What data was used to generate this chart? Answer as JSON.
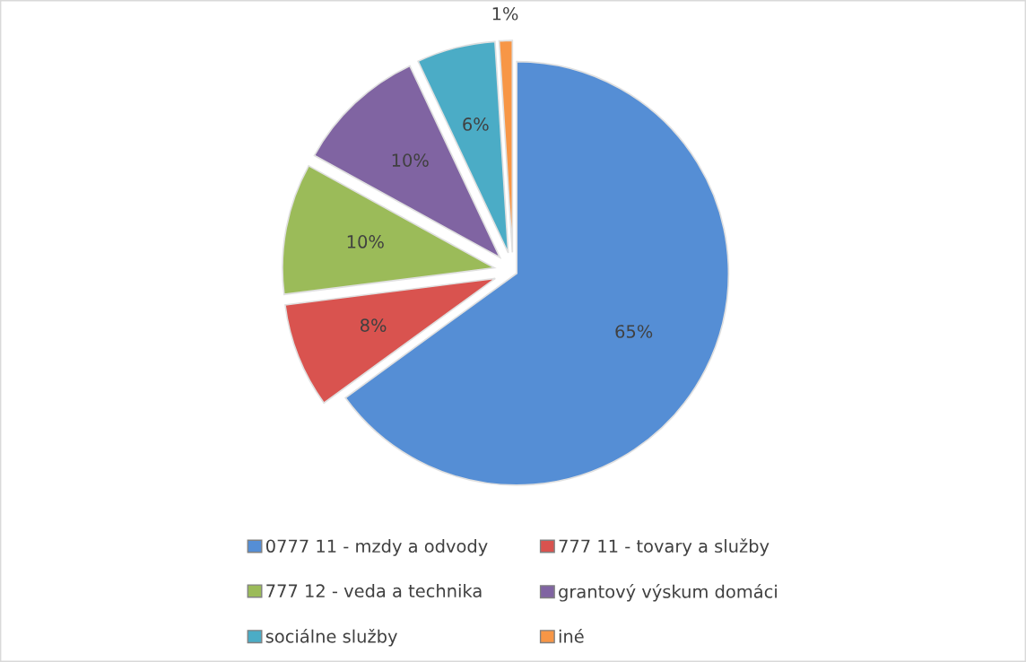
{
  "chart_data": {
    "type": "pie",
    "categories": [
      "0777 11 - mzdy a odvody",
      "777 11 - tovary a služby",
      "777 12 - veda a technika",
      "grantový výskum domáci",
      "sociálne služby",
      "iné"
    ],
    "values": [
      65,
      8,
      10,
      10,
      6,
      1
    ],
    "colors": [
      "#558ed5",
      "#d9534f",
      "#9bbb59",
      "#8064a2",
      "#4bacc6",
      "#f79646"
    ],
    "value_labels": [
      "65%",
      "8%",
      "10%",
      "10%",
      "6%",
      "1%"
    ],
    "legend": "bottom"
  }
}
